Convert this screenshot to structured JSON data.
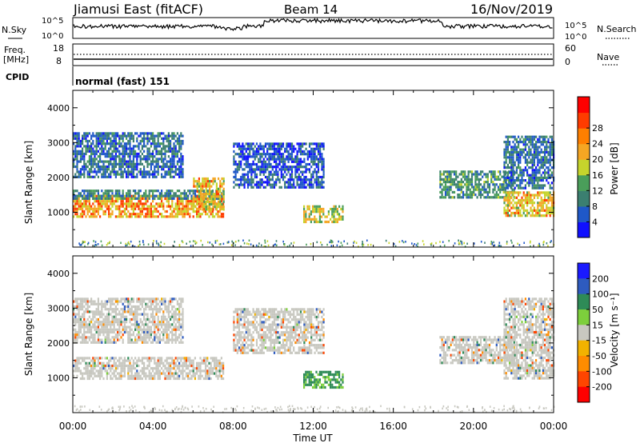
{
  "header": {
    "station": "Jiamusi East (fitACF)",
    "beam": "Beam 14",
    "date": "16/Nov/2019"
  },
  "top_panels": {
    "nsky_label": "N.Sky",
    "nsky_ticks": [
      "10^5",
      "10^0"
    ],
    "nsearch_label": "N.Search",
    "nsearch_ticks": [
      "10^5",
      "10^0"
    ],
    "freq_label_1": "Freq.",
    "freq_label_2": "[MHz]",
    "freq_ticks": [
      "18",
      "8"
    ],
    "nave_label": "Nave",
    "nave_ticks": [
      "60",
      "0"
    ],
    "cpid_label": "CPID",
    "cpid_text": "normal (fast) 151"
  },
  "colors": {
    "power_scale": [
      "#1010ff",
      "#1f58c8",
      "#3b7f70",
      "#4a9e5a",
      "#c6d42c",
      "#f5a623",
      "#ff7f00",
      "#ff3c00",
      "#ff0000"
    ],
    "velocity_scale": [
      "#1a1aff",
      "#2e5bbf",
      "#2e8b57",
      "#7dcf3c",
      "#c8c8c0",
      "#f2b200",
      "#ff8c00",
      "#ff4500",
      "#ff0000"
    ]
  },
  "chart_data": [
    {
      "type": "heatmap",
      "panel": "power",
      "ylabel": "Slant Range [km]",
      "xlabel": "Time UT",
      "x_ticks": [
        "00:00",
        "04:00",
        "08:00",
        "12:00",
        "16:00",
        "20:00",
        "00:00"
      ],
      "y_ticks": [
        "1000",
        "2000",
        "3000",
        "4000"
      ],
      "ylim": [
        0,
        4500
      ],
      "xlim_hours": [
        0,
        24
      ],
      "colorbar_label": "Power [dB]",
      "colorbar_ticks": [
        "4",
        "8",
        "12",
        "16",
        "20",
        "24",
        "28"
      ],
      "regions": [
        {
          "t0": 0.0,
          "t1": 7.5,
          "r0": 900,
          "r1": 1500,
          "value": 24
        },
        {
          "t0": 0.0,
          "t1": 7.5,
          "r0": 1400,
          "r1": 1650,
          "value": 12
        },
        {
          "t0": 0.0,
          "t1": 5.5,
          "r0": 2000,
          "r1": 3300,
          "value": 10
        },
        {
          "t0": 6.0,
          "t1": 7.5,
          "r0": 1100,
          "r1": 2000,
          "value": 22
        },
        {
          "t0": 8.0,
          "t1": 12.5,
          "r0": 1700,
          "r1": 3000,
          "value": 8
        },
        {
          "t0": 11.5,
          "t1": 13.5,
          "r0": 700,
          "r1": 1200,
          "value": 20
        },
        {
          "t0": 18.3,
          "t1": 22.0,
          "r0": 1400,
          "r1": 2200,
          "value": 14
        },
        {
          "t0": 21.5,
          "t1": 24.0,
          "r0": 900,
          "r1": 1600,
          "value": 22
        },
        {
          "t0": 21.5,
          "t1": 24.0,
          "r0": 1700,
          "r1": 3200,
          "value": 10
        }
      ]
    },
    {
      "type": "heatmap",
      "panel": "velocity",
      "ylabel": "Slant Range [km]",
      "xlabel": "Time UT",
      "x_ticks": [
        "00:00",
        "04:00",
        "08:00",
        "12:00",
        "16:00",
        "20:00",
        "00:00"
      ],
      "y_ticks": [
        "1000",
        "2000",
        "3000",
        "4000"
      ],
      "ylim": [
        0,
        4500
      ],
      "xlim_hours": [
        0,
        24
      ],
      "colorbar_label": "Velocity [m s⁻¹]",
      "colorbar_ticks": [
        "200",
        "100",
        "50",
        "15",
        "-15",
        "-50",
        "-100",
        "-200"
      ],
      "regions": [
        {
          "t0": 0.0,
          "t1": 7.5,
          "r0": 1000,
          "r1": 1600,
          "value": 0
        },
        {
          "t0": 0.0,
          "t1": 5.5,
          "r0": 2000,
          "r1": 3300,
          "value": 0
        },
        {
          "t0": 8.0,
          "t1": 12.5,
          "r0": 1700,
          "r1": 3000,
          "value": 0
        },
        {
          "t0": 11.5,
          "t1": 13.5,
          "r0": 700,
          "r1": 1200,
          "value": 40
        },
        {
          "t0": 18.3,
          "t1": 22.0,
          "r0": 1400,
          "r1": 2200,
          "value": 0
        },
        {
          "t0": 21.5,
          "t1": 24.0,
          "r0": 1000,
          "r1": 3300,
          "value": 0
        }
      ]
    }
  ]
}
